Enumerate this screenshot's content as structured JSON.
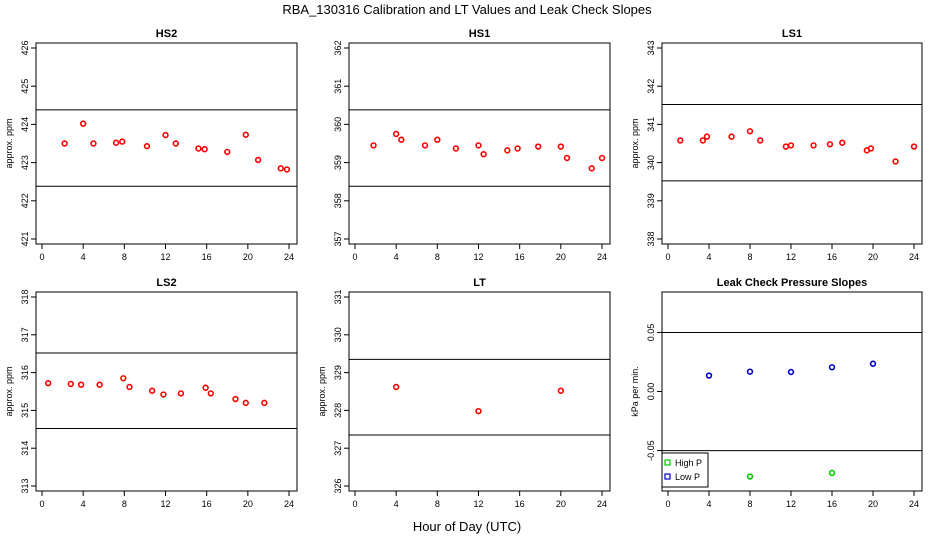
{
  "figure": {
    "title": "RBA_130316  Calibration and LT Values and Leak Check Slopes",
    "xlabel": "Hour of Day (UTC)"
  },
  "chart_data": [
    {
      "type": "scatter",
      "title": "HS2",
      "ylabel": "approx. ppm",
      "xlim": [
        0,
        24
      ],
      "ylim": [
        421,
        426
      ],
      "xticks": [
        "0",
        "4",
        "8",
        "12",
        "16",
        "20",
        "24"
      ],
      "yticks": [
        "421",
        "422",
        "423",
        "424",
        "425",
        "426"
      ],
      "grid": false,
      "hlines": [
        424.38,
        422.38
      ],
      "series": [
        {
          "color": "#ff0000",
          "x": [
            2.2,
            4.0,
            5.0,
            7.2,
            7.8,
            10.2,
            12.0,
            13.0,
            15.2,
            15.8,
            18.0,
            19.8,
            21.0,
            23.2,
            23.8
          ],
          "y": [
            423.5,
            424.02,
            423.5,
            423.52,
            423.55,
            423.43,
            423.72,
            423.5,
            423.37,
            423.35,
            423.28,
            423.73,
            423.07,
            422.85,
            422.82
          ]
        }
      ]
    },
    {
      "type": "scatter",
      "title": "HS1",
      "ylabel": "",
      "xlim": [
        0,
        24
      ],
      "ylim": [
        357,
        362
      ],
      "xticks": [
        "0",
        "4",
        "8",
        "12",
        "16",
        "20",
        "24"
      ],
      "yticks": [
        "357",
        "358",
        "359",
        "360",
        "361",
        "362"
      ],
      "grid": false,
      "hlines": [
        360.38,
        358.38
      ],
      "series": [
        {
          "color": "#ff0000",
          "x": [
            1.8,
            4.0,
            4.5,
            6.8,
            8.0,
            9.8,
            12.0,
            12.5,
            14.8,
            15.8,
            17.8,
            20.0,
            20.6,
            23.0,
            24.0
          ],
          "y": [
            359.45,
            359.75,
            359.6,
            359.45,
            359.6,
            359.37,
            359.45,
            359.22,
            359.32,
            359.37,
            359.42,
            359.42,
            359.12,
            358.85,
            359.12
          ]
        }
      ]
    },
    {
      "type": "scatter",
      "title": "LS1",
      "ylabel": "approx. ppm",
      "xlim": [
        0,
        24
      ],
      "ylim": [
        338,
        343
      ],
      "xticks": [
        "0",
        "4",
        "8",
        "12",
        "16",
        "20",
        "24"
      ],
      "yticks": [
        "338",
        "339",
        "340",
        "341",
        "342",
        "343"
      ],
      "grid": false,
      "hlines": [
        341.52,
        339.52
      ],
      "series": [
        {
          "color": "#ff0000",
          "x": [
            1.2,
            3.4,
            3.8,
            6.2,
            8.0,
            9.0,
            11.5,
            12.0,
            14.2,
            15.8,
            17.0,
            19.4,
            19.8,
            22.2,
            24.0
          ],
          "y": [
            340.58,
            340.58,
            340.68,
            340.68,
            340.82,
            340.58,
            340.42,
            340.45,
            340.45,
            340.48,
            340.52,
            340.32,
            340.37,
            340.03,
            340.42
          ]
        }
      ]
    },
    {
      "type": "scatter",
      "title": "LS2",
      "ylabel": "approx. ppm",
      "xlim": [
        0,
        24
      ],
      "ylim": [
        313,
        318
      ],
      "xticks": [
        "0",
        "4",
        "8",
        "12",
        "16",
        "20",
        "24"
      ],
      "yticks": [
        "313",
        "314",
        "315",
        "316",
        "317",
        "318"
      ],
      "grid": false,
      "hlines": [
        316.52,
        314.52
      ],
      "series": [
        {
          "color": "#ff0000",
          "x": [
            0.6,
            2.8,
            3.8,
            5.6,
            7.9,
            8.5,
            10.7,
            11.8,
            13.5,
            15.9,
            16.4,
            18.8,
            19.8,
            21.6
          ],
          "y": [
            315.72,
            315.7,
            315.68,
            315.68,
            315.85,
            315.62,
            315.52,
            315.42,
            315.45,
            315.6,
            315.45,
            315.3,
            315.2,
            315.2
          ]
        }
      ]
    },
    {
      "type": "scatter",
      "title": "LT",
      "ylabel": "approx. ppm",
      "xlim": [
        0,
        24
      ],
      "ylim": [
        326,
        331
      ],
      "xticks": [
        "0",
        "4",
        "8",
        "12",
        "16",
        "20",
        "24"
      ],
      "yticks": [
        "326",
        "327",
        "328",
        "329",
        "330",
        "331"
      ],
      "grid": false,
      "hlines": [
        329.35,
        327.35
      ],
      "series": [
        {
          "color": "#ff0000",
          "x": [
            4.0,
            12.0,
            20.0
          ],
          "y": [
            328.62,
            327.98,
            328.52
          ]
        }
      ]
    },
    {
      "type": "scatter",
      "title": "Leak Check Pressure Slopes",
      "ylabel": "kPa per min.",
      "xlim": [
        0,
        24
      ],
      "ylim": [
        -0.08,
        0.08
      ],
      "xticks": [
        "0",
        "4",
        "8",
        "12",
        "16",
        "20",
        "24"
      ],
      "yticks": [
        "-0.05",
        "0.00",
        "0.05"
      ],
      "grid": false,
      "hlines": [
        0.05,
        -0.05
      ],
      "legend": {
        "position": "bottom-left",
        "entries": [
          {
            "label": "High P",
            "color": "#00cc00"
          },
          {
            "label": "Low P",
            "color": "#0000cc"
          }
        ]
      },
      "series": [
        {
          "name": "High P",
          "color": "#00cc00",
          "x": [
            8.0,
            16.0
          ],
          "y": [
            -0.072,
            -0.069
          ]
        },
        {
          "name": "Low P",
          "color": "#0000cc",
          "x": [
            4.0,
            8.0,
            12.0,
            16.0,
            20.0
          ],
          "y": [
            0.0135,
            0.0168,
            0.0165,
            0.0205,
            0.0235
          ]
        }
      ]
    }
  ]
}
